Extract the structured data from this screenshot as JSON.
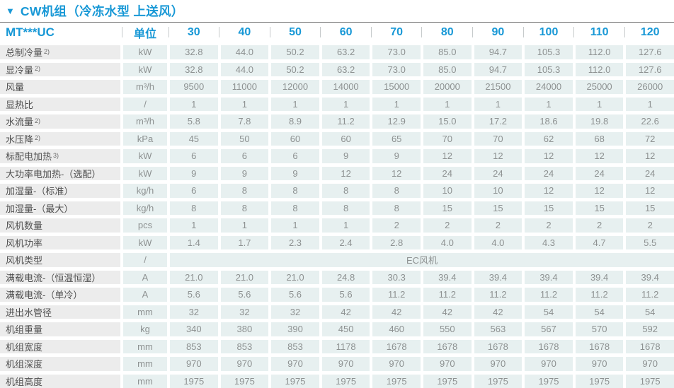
{
  "title": {
    "marker": "▼",
    "text": "CW机组（冷冻水型 上送风）"
  },
  "colors": {
    "accent_blue": "#1898d6",
    "rule_gray": "#7d7d7d",
    "label_cell_bg": "#ececec",
    "data_cell_bg": "#e7f0f0",
    "label_text": "#4f4f4f",
    "value_text": "#8d9191",
    "header_divider": "#c6cacb"
  },
  "table": {
    "model_header": "MT***UC",
    "unit_header": "单位",
    "size_headers": [
      "30",
      "40",
      "50",
      "60",
      "70",
      "80",
      "90",
      "100",
      "110",
      "120"
    ],
    "rows": [
      {
        "label": "总制冷量",
        "sup": "2)",
        "unit": "kW",
        "values": [
          "32.8",
          "44.0",
          "50.2",
          "63.2",
          "73.0",
          "85.0",
          "94.7",
          "105.3",
          "112.0",
          "127.6"
        ]
      },
      {
        "label": "显冷量",
        "sup": "2)",
        "unit": "kW",
        "values": [
          "32.8",
          "44.0",
          "50.2",
          "63.2",
          "73.0",
          "85.0",
          "94.7",
          "105.3",
          "112.0",
          "127.6"
        ]
      },
      {
        "label": "风量",
        "unit": "m³/h",
        "values": [
          "9500",
          "11000",
          "12000",
          "14000",
          "15000",
          "20000",
          "21500",
          "24000",
          "25000",
          "26000"
        ]
      },
      {
        "label": "显热比",
        "unit": "/",
        "values": [
          "1",
          "1",
          "1",
          "1",
          "1",
          "1",
          "1",
          "1",
          "1",
          "1"
        ]
      },
      {
        "label": "水流量",
        "sup": "2)",
        "unit": "m³/h",
        "values": [
          "5.8",
          "7.8",
          "8.9",
          "11.2",
          "12.9",
          "15.0",
          "17.2",
          "18.6",
          "19.8",
          "22.6"
        ]
      },
      {
        "label": "水压降",
        "sup": "2)",
        "unit": "kPa",
        "values": [
          "45",
          "50",
          "60",
          "60",
          "65",
          "70",
          "70",
          "62",
          "68",
          "72"
        ]
      },
      {
        "label": "标配电加热",
        "sup": "3)",
        "unit": "kW",
        "values": [
          "6",
          "6",
          "6",
          "9",
          "9",
          "12",
          "12",
          "12",
          "12",
          "12"
        ]
      },
      {
        "label": "大功率电加热-（选配）",
        "unit": "kW",
        "values": [
          "9",
          "9",
          "9",
          "12",
          "12",
          "24",
          "24",
          "24",
          "24",
          "24"
        ]
      },
      {
        "label": "加湿量-（标准）",
        "unit": "kg/h",
        "values": [
          "6",
          "8",
          "8",
          "8",
          "8",
          "10",
          "10",
          "12",
          "12",
          "12"
        ]
      },
      {
        "label": "加湿量-（最大）",
        "unit": "kg/h",
        "values": [
          "8",
          "8",
          "8",
          "8",
          "8",
          "15",
          "15",
          "15",
          "15",
          "15"
        ]
      },
      {
        "label": "风机数量",
        "unit": "pcs",
        "values": [
          "1",
          "1",
          "1",
          "1",
          "2",
          "2",
          "2",
          "2",
          "2",
          "2"
        ]
      },
      {
        "label": "风机功率",
        "unit": "kW",
        "values": [
          "1.4",
          "1.7",
          "2.3",
          "2.4",
          "2.8",
          "4.0",
          "4.0",
          "4.3",
          "4.7",
          "5.5"
        ]
      },
      {
        "label": "风机类型",
        "unit": "/",
        "merged": "EC风机"
      },
      {
        "label": "满载电流-（恒温恒湿）",
        "unit": "A",
        "values": [
          "21.0",
          "21.0",
          "21.0",
          "24.8",
          "30.3",
          "39.4",
          "39.4",
          "39.4",
          "39.4",
          "39.4"
        ]
      },
      {
        "label": "满载电流-（单冷）",
        "unit": "A",
        "values": [
          "5.6",
          "5.6",
          "5.6",
          "5.6",
          "11.2",
          "11.2",
          "11.2",
          "11.2",
          "11.2",
          "11.2"
        ]
      },
      {
        "label": "进出水管径",
        "unit": "mm",
        "values": [
          "32",
          "32",
          "32",
          "42",
          "42",
          "42",
          "42",
          "54",
          "54",
          "54"
        ]
      },
      {
        "label": "机组重量",
        "unit": "kg",
        "values": [
          "340",
          "380",
          "390",
          "450",
          "460",
          "550",
          "563",
          "567",
          "570",
          "592"
        ]
      },
      {
        "label": "机组宽度",
        "unit": "mm",
        "values": [
          "853",
          "853",
          "853",
          "1178",
          "1678",
          "1678",
          "1678",
          "1678",
          "1678",
          "1678"
        ]
      },
      {
        "label": "机组深度",
        "unit": "mm",
        "values": [
          "970",
          "970",
          "970",
          "970",
          "970",
          "970",
          "970",
          "970",
          "970",
          "970"
        ]
      },
      {
        "label": "机组高度",
        "unit": "mm",
        "values": [
          "1975",
          "1975",
          "1975",
          "1975",
          "1975",
          "1975",
          "1975",
          "1975",
          "1975",
          "1975"
        ]
      }
    ]
  }
}
